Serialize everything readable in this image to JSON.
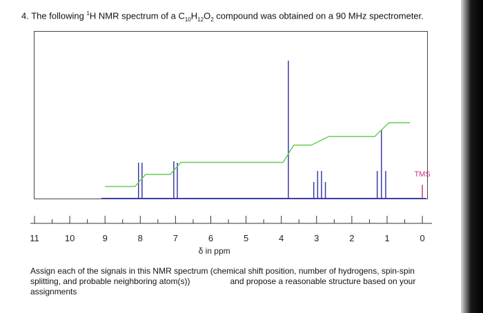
{
  "question": {
    "prefix": "4. The following ",
    "nucleus_sup": "1",
    "nucleus": "H NMR spectrum of a C",
    "c_sub": "10",
    "h": "H",
    "h_sub": "12",
    "o": "O",
    "o_sub": "2",
    "suffix": " compound was obtained on a 90 MHz spectrometer."
  },
  "instructions": {
    "part1": "Assign each of the signals in this NMR spectrum (chemical shift position, number of hydrogens, spin-spin splitting, and probable neighboring atom(s))",
    "part2": "and propose a reasonable structure based on your assignments"
  },
  "colors": {
    "spectrum": "#3a3aa8",
    "integral": "#66cc55",
    "tms": "#cc3388",
    "axis": "#333333"
  },
  "chart_data": {
    "type": "line",
    "title": "",
    "xlabel": "δ in ppm",
    "ylabel": "",
    "xlim": [
      11,
      0
    ],
    "x_reversed": true,
    "x_ticks": [
      11,
      10,
      9,
      8,
      7,
      6,
      5,
      4,
      3,
      2,
      1,
      0
    ],
    "grid": false,
    "baseline_range": [
      9.1,
      -0.1
    ],
    "peaks": [
      {
        "group": "aromatic-1",
        "shift": 8.05,
        "height": 0.26
      },
      {
        "group": "aromatic-1",
        "shift": 7.95,
        "height": 0.26
      },
      {
        "group": "aromatic-2",
        "shift": 7.05,
        "height": 0.27
      },
      {
        "group": "aromatic-2",
        "shift": 6.95,
        "height": 0.26
      },
      {
        "group": "singlet",
        "shift": 3.8,
        "height": 1.0
      },
      {
        "group": "quartet",
        "shift": 3.08,
        "height": 0.12
      },
      {
        "group": "quartet",
        "shift": 2.97,
        "height": 0.2
      },
      {
        "group": "quartet",
        "shift": 2.86,
        "height": 0.2
      },
      {
        "group": "quartet",
        "shift": 2.75,
        "height": 0.12
      },
      {
        "group": "triplet",
        "shift": 1.28,
        "height": 0.2
      },
      {
        "group": "triplet",
        "shift": 1.16,
        "height": 0.5
      },
      {
        "group": "triplet",
        "shift": 1.04,
        "height": 0.2
      },
      {
        "group": "TMS",
        "shift": 0.0,
        "height": 0.1
      }
    ],
    "tms_label": "TMS",
    "integral": [
      [
        9.0,
        0.05
      ],
      [
        8.15,
        0.05
      ],
      [
        7.85,
        0.12
      ],
      [
        7.15,
        0.12
      ],
      [
        6.85,
        0.19
      ],
      [
        3.95,
        0.19
      ],
      [
        3.65,
        0.29
      ],
      [
        3.15,
        0.29
      ],
      [
        2.65,
        0.34
      ],
      [
        1.35,
        0.34
      ],
      [
        0.95,
        0.42
      ],
      [
        0.35,
        0.42
      ]
    ]
  }
}
